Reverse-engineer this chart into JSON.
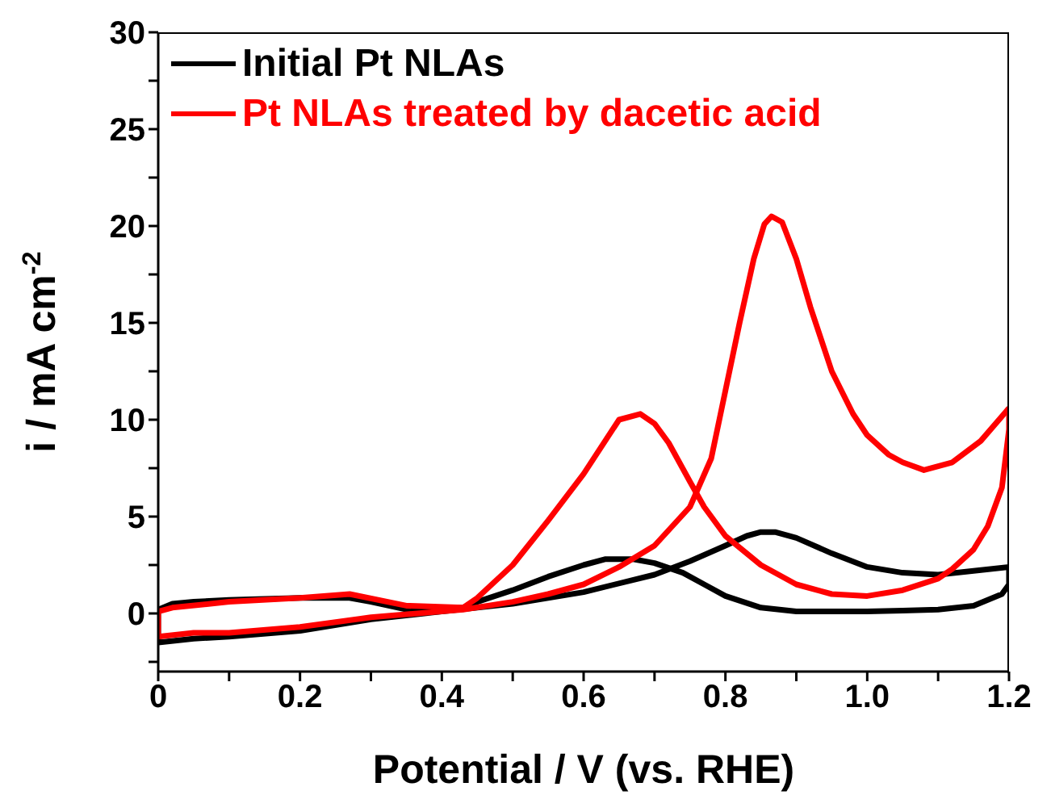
{
  "chart_data": {
    "type": "line",
    "xlabel": "Potential  / V (vs. RHE)",
    "ylabel": "i / mA cm$^{-2}$",
    "xlim": [
      0,
      1.2
    ],
    "ylim": [
      -3,
      30
    ],
    "xticks": [
      0,
      {
        "value": 0.1,
        "label": null
      },
      {
        "value": 0.2,
        "label": "0.2"
      },
      {
        "value": 0.3,
        "label": null
      },
      {
        "value": 0.4,
        "label": "0.4"
      },
      {
        "value": 0.5,
        "label": null
      },
      {
        "value": 0.6,
        "label": "0.6"
      },
      {
        "value": 0.7,
        "label": null
      },
      {
        "value": 0.8,
        "label": "0.8"
      },
      {
        "value": 0.9,
        "label": null
      },
      {
        "value": 1,
        "label": "1.0"
      },
      {
        "value": 1.1,
        "label": null
      },
      {
        "value": 1.2,
        "label": "1.2"
      }
    ],
    "yticks": [
      {
        "value": -2.5,
        "label": null
      },
      0,
      {
        "value": 2.5,
        "label": null
      },
      5,
      {
        "value": 7.5,
        "label": null
      },
      10,
      {
        "value": 12.5,
        "label": null
      },
      15,
      {
        "value": 17.5,
        "label": null
      },
      20,
      {
        "value": 22.5,
        "label": null
      },
      25,
      {
        "value": 27.5,
        "label": null
      },
      30
    ],
    "legend": "top left",
    "grid": false,
    "marker": "none",
    "line_style": "solid",
    "series": [
      {
        "name": "Initial Pt NLAs",
        "color": "#000000",
        "x": [
          0,
          0.05,
          0.1,
          0.2,
          0.3,
          0.4,
          0.5,
          0.6,
          0.7,
          0.75,
          0.8,
          0.83,
          0.85,
          0.87,
          0.9,
          0.95,
          1.0,
          1.05,
          1.1,
          1.15,
          1.2
        ],
        "values": [
          -1.5,
          -1.3,
          -1.2,
          -0.9,
          -0.3,
          0.1,
          0.5,
          1.1,
          2.0,
          2.7,
          3.5,
          4.0,
          4.2,
          4.2,
          3.9,
          3.1,
          2.4,
          2.1,
          2.0,
          2.2,
          2.4
        ]
      },
      {
        "color": "#000000",
        "x": [
          1.2,
          1.2,
          1.19,
          1.17,
          1.15,
          1.1,
          1.05,
          1.0,
          0.95,
          0.9,
          0.85,
          0.8,
          0.77,
          0.74,
          0.7,
          0.67,
          0.63,
          0.6,
          0.55,
          0.5,
          0.45,
          0.43,
          0.39,
          0.35,
          0.3,
          0.27,
          0.2,
          0.1,
          0.05,
          0.02,
          0,
          0
        ],
        "values": [
          2.4,
          1.5,
          1.0,
          0.7,
          0.4,
          0.2,
          0.15,
          0.1,
          0.1,
          0.1,
          0.3,
          0.9,
          1.5,
          2.1,
          2.6,
          2.8,
          2.8,
          2.5,
          1.9,
          1.2,
          0.6,
          0.3,
          0.2,
          0.2,
          0.6,
          0.8,
          0.8,
          0.7,
          0.6,
          0.5,
          0.2,
          -1.5
        ]
      },
      {
        "name": "Pt NLAs treated by dacetic acid",
        "color": "#ff0000",
        "x": [
          0,
          0.05,
          0.1,
          0.2,
          0.3,
          0.43,
          0.5,
          0.55,
          0.6,
          0.65,
          0.7,
          0.75,
          0.78,
          0.8,
          0.82,
          0.84,
          0.855,
          0.865,
          0.88,
          0.9,
          0.92,
          0.95,
          0.98,
          1.0,
          1.03,
          1.05,
          1.08,
          1.12,
          1.16,
          1.2
        ],
        "values": [
          -1.2,
          -1.0,
          -1.0,
          -0.7,
          -0.2,
          0.2,
          0.6,
          1.0,
          1.5,
          2.4,
          3.5,
          5.5,
          8,
          11.5,
          15,
          18.3,
          20.1,
          20.5,
          20.2,
          18.3,
          15.8,
          12.5,
          10.3,
          9.2,
          8.2,
          7.8,
          7.4,
          7.8,
          8.9,
          10.6
        ]
      },
      {
        "color": "#ff0000",
        "x": [
          1.2,
          1.2,
          1.19,
          1.17,
          1.15,
          1.12,
          1.1,
          1.05,
          1.0,
          0.95,
          0.9,
          0.85,
          0.8,
          0.77,
          0.75,
          0.72,
          0.7,
          0.68,
          0.65,
          0.6,
          0.55,
          0.5,
          0.45,
          0.43,
          0.35,
          0.27,
          0.2,
          0.1,
          0.02,
          0,
          0
        ],
        "values": [
          10.6,
          9.5,
          6.5,
          4.5,
          3.3,
          2.3,
          1.8,
          1.2,
          0.9,
          1.0,
          1.5,
          2.5,
          4.0,
          5.5,
          6.8,
          8.8,
          9.8,
          10.3,
          10.0,
          7.2,
          4.8,
          2.5,
          0.8,
          0.3,
          0.4,
          1.0,
          0.8,
          0.6,
          0.3,
          0.1,
          -1.2
        ]
      }
    ]
  }
}
